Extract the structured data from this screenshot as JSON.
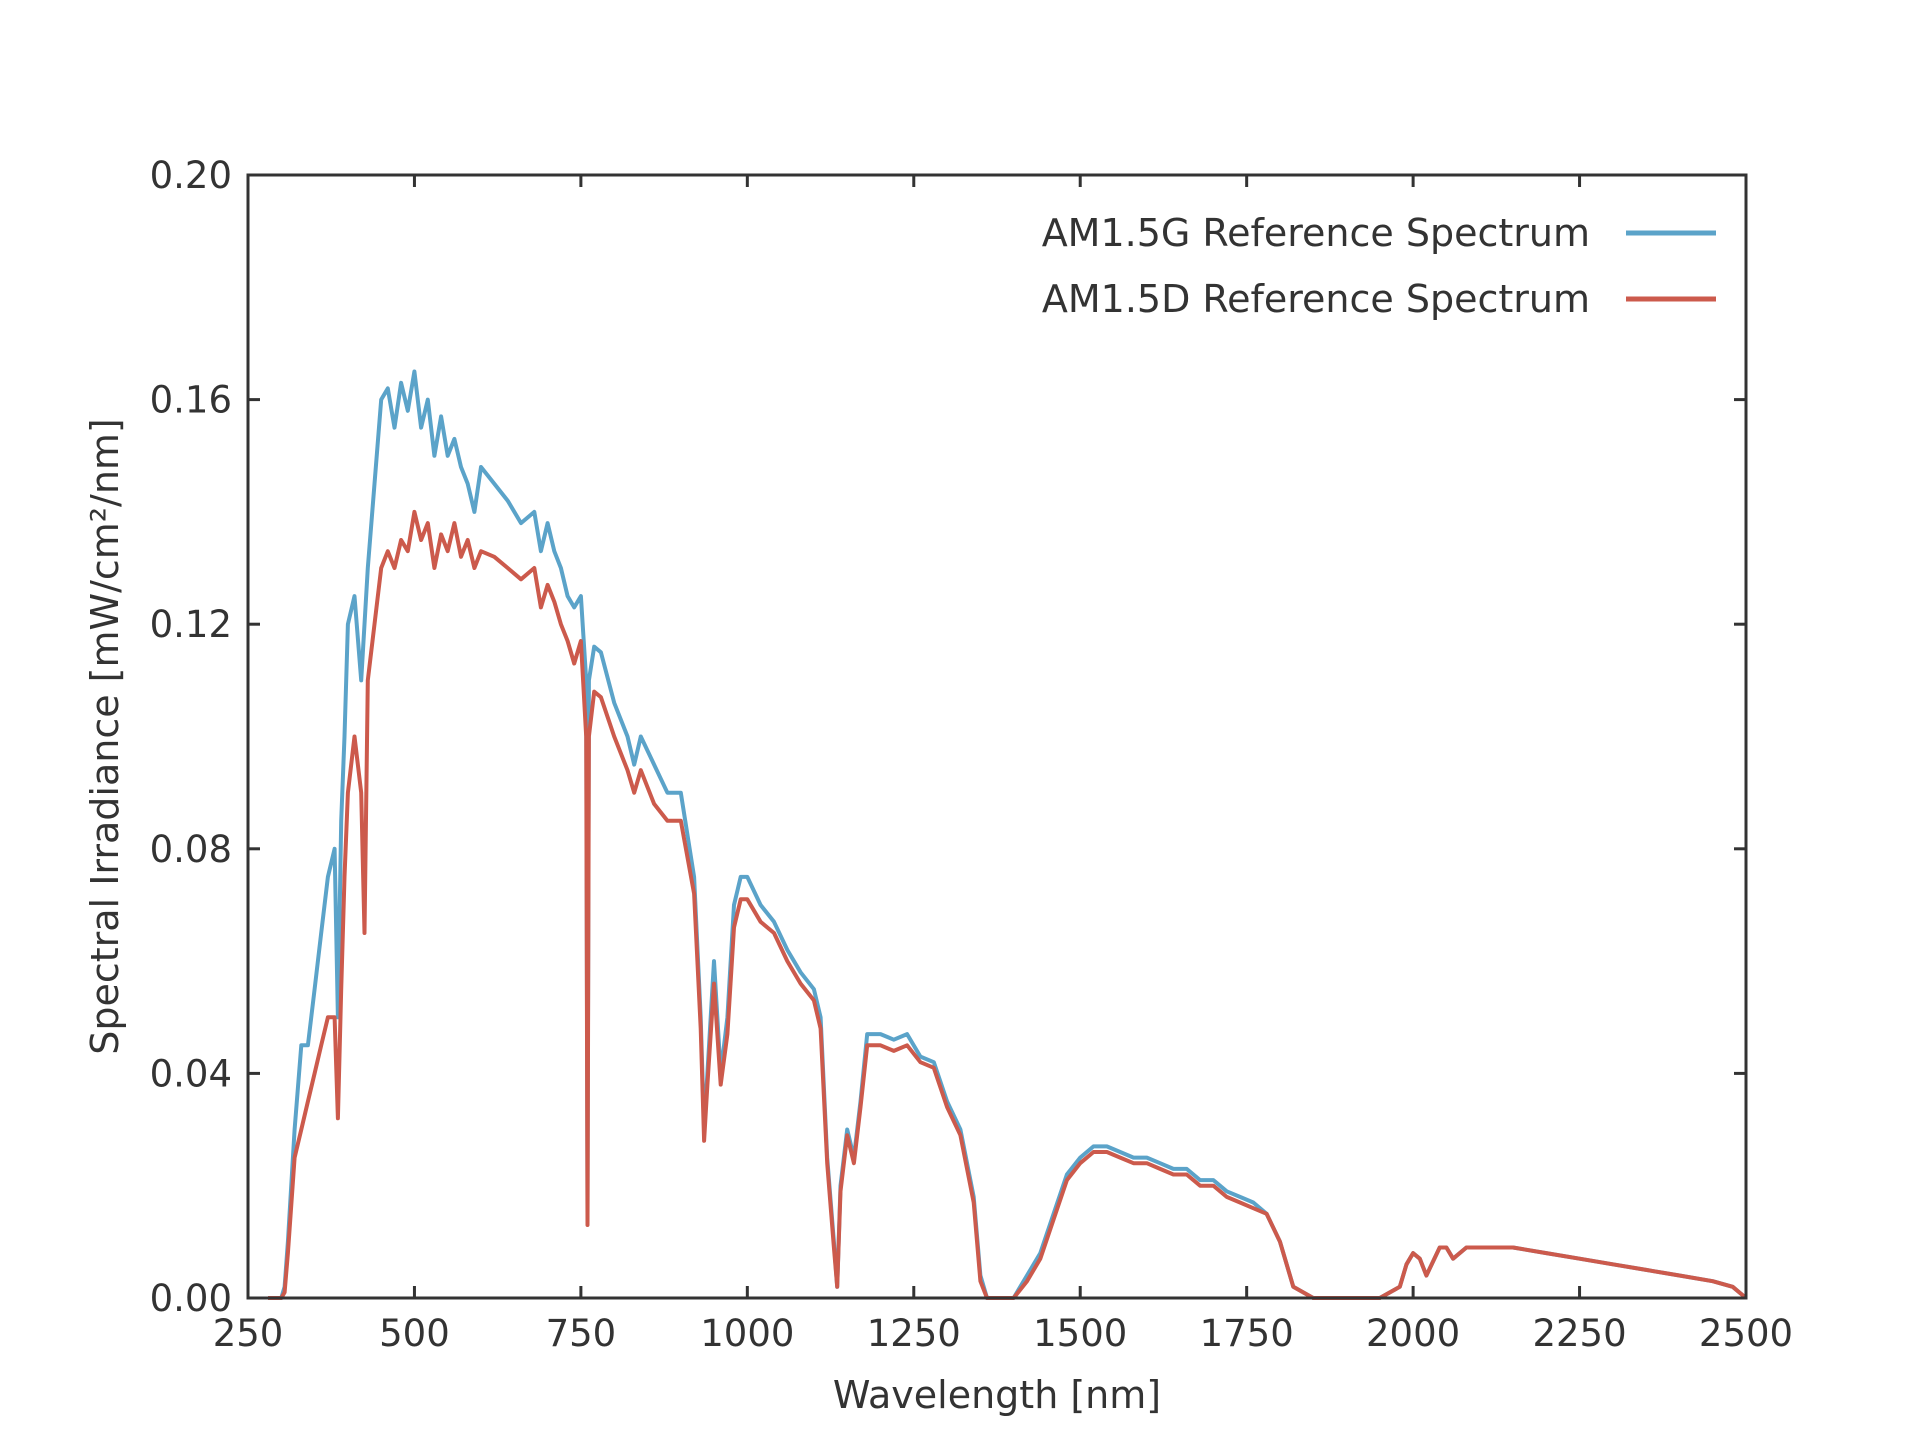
{
  "chart_data": {
    "type": "line",
    "title": "",
    "xlabel": "Wavelength [nm]",
    "ylabel": "Spectral Irradiance [mW/cm²/nm]",
    "xlim": [
      250,
      2500
    ],
    "ylim": [
      0,
      0.2
    ],
    "x_ticks": [
      250,
      500,
      750,
      1000,
      1250,
      1500,
      1750,
      2000,
      2250,
      2500
    ],
    "x_tick_labels": [
      "250",
      "500",
      "750",
      "1000",
      "1250",
      "1500",
      "1750",
      "2000",
      "2250",
      "2500"
    ],
    "y_ticks": [
      0,
      0.04,
      0.08,
      0.12,
      0.16,
      0.2
    ],
    "y_tick_labels": [
      "0.00",
      "0.04",
      "0.08",
      "0.12",
      "0.16",
      "0.20"
    ],
    "grid": false,
    "legend_position": "top-right",
    "series": [
      {
        "name": "AM1.5G Reference Spectrum",
        "color": "#5ba3c9",
        "x": [
          280,
          300,
          305,
          310,
          320,
          330,
          340,
          350,
          360,
          370,
          380,
          385,
          390,
          395,
          400,
          410,
          420,
          430,
          440,
          450,
          460,
          470,
          480,
          490,
          500,
          510,
          520,
          530,
          540,
          550,
          560,
          570,
          580,
          590,
          600,
          620,
          640,
          660,
          680,
          690,
          700,
          710,
          720,
          730,
          740,
          750,
          758,
          760,
          762,
          770,
          780,
          800,
          820,
          830,
          840,
          860,
          880,
          900,
          920,
          930,
          935,
          940,
          950,
          960,
          970,
          980,
          990,
          1000,
          1020,
          1040,
          1060,
          1080,
          1100,
          1110,
          1120,
          1130,
          1135,
          1140,
          1150,
          1160,
          1170,
          1180,
          1200,
          1220,
          1240,
          1260,
          1280,
          1300,
          1320,
          1340,
          1350,
          1360,
          1400,
          1420,
          1440,
          1460,
          1480,
          1500,
          1520,
          1540,
          1560,
          1580,
          1600,
          1620,
          1640,
          1660,
          1680,
          1700,
          1720,
          1740,
          1760,
          1780,
          1800,
          1820,
          1850,
          1900,
          1950,
          1980,
          1990,
          2000,
          2010,
          2020,
          2040,
          2050,
          2060,
          2080,
          2100,
          2150,
          2200,
          2250,
          2300,
          2350,
          2400,
          2450,
          2480,
          2490,
          2500
        ],
        "y": [
          0,
          0,
          0.002,
          0.01,
          0.03,
          0.045,
          0.045,
          0.055,
          0.065,
          0.075,
          0.08,
          0.05,
          0.085,
          0.1,
          0.12,
          0.125,
          0.11,
          0.13,
          0.145,
          0.16,
          0.162,
          0.155,
          0.163,
          0.158,
          0.165,
          0.155,
          0.16,
          0.15,
          0.157,
          0.15,
          0.153,
          0.148,
          0.145,
          0.14,
          0.148,
          0.145,
          0.142,
          0.138,
          0.14,
          0.133,
          0.138,
          0.133,
          0.13,
          0.125,
          0.123,
          0.125,
          0.11,
          0.015,
          0.11,
          0.116,
          0.115,
          0.106,
          0.1,
          0.095,
          0.1,
          0.095,
          0.09,
          0.09,
          0.075,
          0.05,
          0.03,
          0.04,
          0.06,
          0.04,
          0.05,
          0.07,
          0.075,
          0.075,
          0.07,
          0.067,
          0.062,
          0.058,
          0.055,
          0.05,
          0.025,
          0.01,
          0.002,
          0.02,
          0.03,
          0.025,
          0.035,
          0.047,
          0.047,
          0.046,
          0.047,
          0.043,
          0.042,
          0.035,
          0.03,
          0.018,
          0.004,
          0,
          0,
          0.004,
          0.008,
          0.015,
          0.022,
          0.025,
          0.027,
          0.027,
          0.026,
          0.025,
          0.025,
          0.024,
          0.023,
          0.023,
          0.021,
          0.021,
          0.019,
          0.018,
          0.017,
          0.015,
          0.01,
          0.002,
          0,
          0,
          0,
          0.002,
          0.006,
          0.008,
          0.007,
          0.004,
          0.009,
          0.009,
          0.007,
          0.009,
          0.009,
          0.009,
          0.008,
          0.007,
          0.006,
          0.005,
          0.004,
          0.003,
          0.002,
          0.001,
          0
        ]
      },
      {
        "name": "AM1.5D Reference Spectrum",
        "color": "#cc5a4c",
        "x": [
          280,
          300,
          305,
          310,
          320,
          330,
          340,
          350,
          360,
          370,
          380,
          385,
          390,
          395,
          400,
          410,
          420,
          425,
          430,
          440,
          450,
          460,
          470,
          480,
          490,
          500,
          510,
          520,
          530,
          540,
          550,
          560,
          570,
          580,
          590,
          600,
          620,
          640,
          660,
          680,
          690,
          700,
          710,
          720,
          730,
          740,
          750,
          758,
          760,
          762,
          770,
          780,
          800,
          820,
          830,
          840,
          860,
          880,
          900,
          920,
          930,
          935,
          940,
          950,
          960,
          970,
          980,
          990,
          1000,
          1020,
          1040,
          1060,
          1080,
          1100,
          1110,
          1120,
          1130,
          1135,
          1140,
          1150,
          1160,
          1170,
          1180,
          1200,
          1220,
          1240,
          1260,
          1280,
          1300,
          1320,
          1340,
          1350,
          1360,
          1400,
          1420,
          1440,
          1460,
          1480,
          1500,
          1520,
          1540,
          1560,
          1580,
          1600,
          1620,
          1640,
          1660,
          1680,
          1700,
          1720,
          1740,
          1760,
          1780,
          1800,
          1820,
          1850,
          1900,
          1950,
          1980,
          1990,
          2000,
          2010,
          2020,
          2040,
          2050,
          2060,
          2080,
          2100,
          2150,
          2200,
          2250,
          2300,
          2350,
          2400,
          2450,
          2480,
          2490,
          2500
        ],
        "y": [
          0,
          0,
          0.001,
          0.008,
          0.025,
          0.03,
          0.035,
          0.04,
          0.045,
          0.05,
          0.05,
          0.032,
          0.055,
          0.075,
          0.09,
          0.1,
          0.09,
          0.065,
          0.11,
          0.12,
          0.13,
          0.133,
          0.13,
          0.135,
          0.133,
          0.14,
          0.135,
          0.138,
          0.13,
          0.136,
          0.133,
          0.138,
          0.132,
          0.135,
          0.13,
          0.133,
          0.132,
          0.13,
          0.128,
          0.13,
          0.123,
          0.127,
          0.124,
          0.12,
          0.117,
          0.113,
          0.117,
          0.1,
          0.013,
          0.1,
          0.108,
          0.107,
          0.1,
          0.094,
          0.09,
          0.094,
          0.088,
          0.085,
          0.085,
          0.072,
          0.048,
          0.028,
          0.038,
          0.056,
          0.038,
          0.047,
          0.066,
          0.071,
          0.071,
          0.067,
          0.065,
          0.06,
          0.056,
          0.053,
          0.048,
          0.024,
          0.009,
          0.002,
          0.019,
          0.029,
          0.024,
          0.034,
          0.045,
          0.045,
          0.044,
          0.045,
          0.042,
          0.041,
          0.034,
          0.029,
          0.017,
          0.003,
          0,
          0,
          0.003,
          0.007,
          0.014,
          0.021,
          0.024,
          0.026,
          0.026,
          0.025,
          0.024,
          0.024,
          0.023,
          0.022,
          0.022,
          0.02,
          0.02,
          0.018,
          0.017,
          0.016,
          0.015,
          0.01,
          0.002,
          0,
          0,
          0,
          0.002,
          0.006,
          0.008,
          0.007,
          0.004,
          0.009,
          0.009,
          0.007,
          0.009,
          0.009,
          0.009,
          0.008,
          0.007,
          0.006,
          0.005,
          0.004,
          0.003,
          0.002,
          0.001,
          0
        ]
      }
    ]
  }
}
